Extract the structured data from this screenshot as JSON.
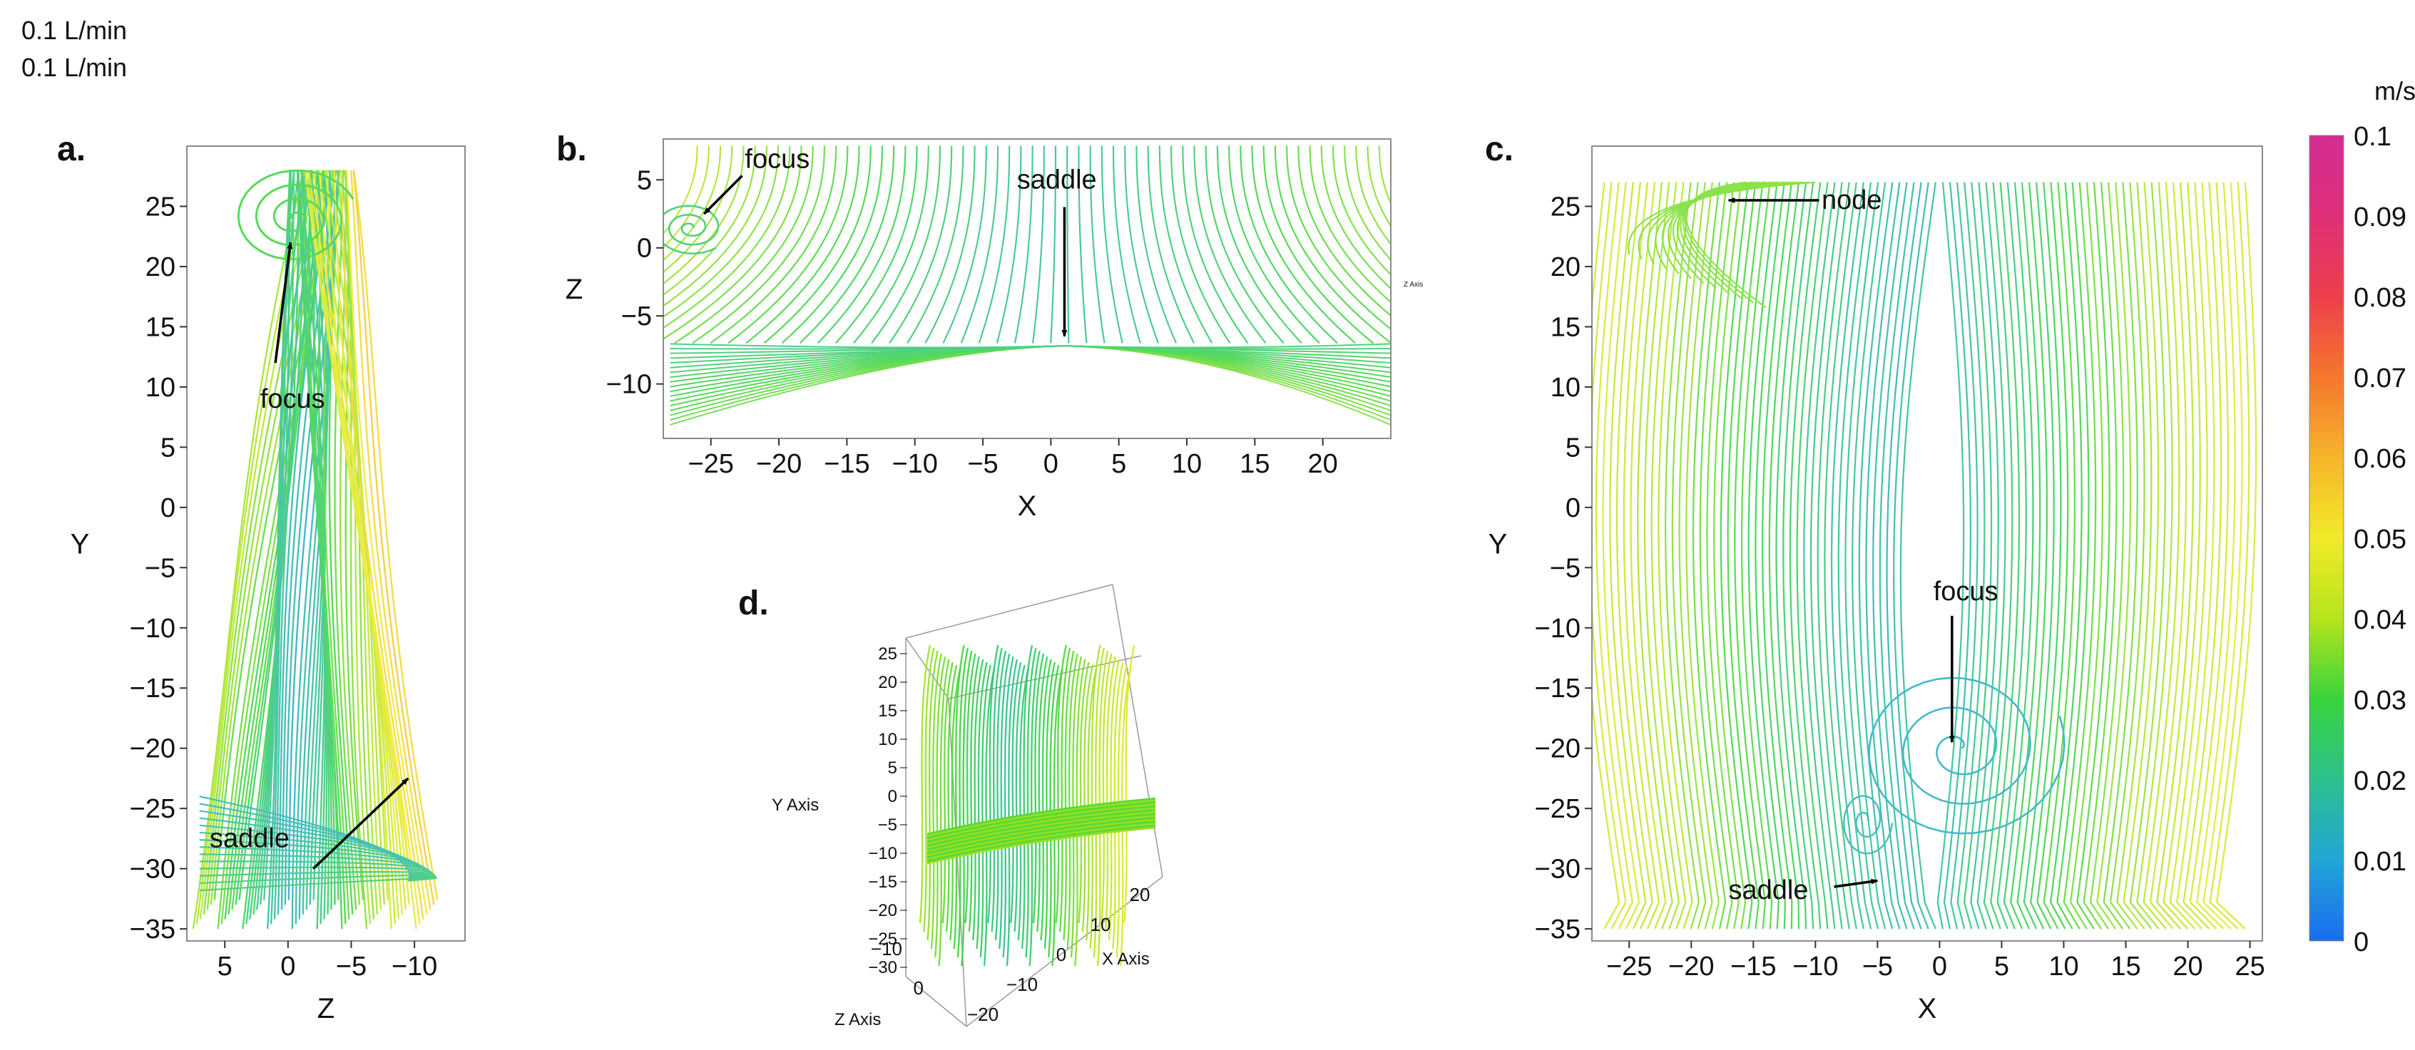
{
  "header": {
    "line1": "0.1 L/min",
    "line2": "0.1 L/min"
  },
  "chart_data": [
    {
      "id": "a",
      "panel_label": "a.",
      "type": "streamline",
      "xlabel": "Z",
      "ylabel": "Y",
      "xlim": [
        8,
        -14
      ],
      "ylim": [
        -36,
        30
      ],
      "xticks": [
        5,
        0,
        -5,
        -10
      ],
      "xtick_labels": [
        "5",
        "0",
        "−5",
        "−10"
      ],
      "yticks": [
        25,
        20,
        15,
        10,
        5,
        0,
        -5,
        -10,
        -15,
        -20,
        -25,
        -30,
        -35
      ],
      "ytick_labels": [
        "25",
        "20",
        "15",
        "10",
        "5",
        "0",
        "−5",
        "−10",
        "−15",
        "−20",
        "−25",
        "−30",
        "−35"
      ],
      "annotations": [
        {
          "text": "focus",
          "text_at": [
            2.2,
            9
          ],
          "arrow_from": [
            1.0,
            12
          ],
          "arrow_to": [
            -0.2,
            22
          ]
        },
        {
          "text": "saddle",
          "text_at": [
            6.2,
            -27.5
          ],
          "arrow_from": [
            -2,
            -30
          ],
          "arrow_to": [
            -9.5,
            -22.5
          ]
        }
      ],
      "critical_points": [
        {
          "kind": "focus",
          "at": [
            -0.5,
            22
          ]
        },
        {
          "kind": "saddle",
          "at": [
            -9.5,
            -22.5
          ]
        }
      ]
    },
    {
      "id": "b",
      "panel_label": "b.",
      "type": "streamline",
      "xlabel": "X",
      "ylabel": "Z",
      "xlim": [
        -28.5,
        25
      ],
      "ylim": [
        -14,
        8
      ],
      "xticks": [
        -25,
        -20,
        -15,
        -10,
        -5,
        0,
        5,
        10,
        15,
        20
      ],
      "xtick_labels": [
        "−25",
        "−20",
        "−15",
        "−10",
        "−5",
        "0",
        "5",
        "10",
        "15",
        "20"
      ],
      "yticks": [
        5,
        0,
        -5,
        -10
      ],
      "ytick_labels": [
        "5",
        "0",
        "−5",
        "−10"
      ],
      "side_label": "Z Axis",
      "annotations": [
        {
          "text": "focus",
          "text_at": [
            -22.5,
            6.5
          ],
          "arrow_from": [
            -22.7,
            5.3
          ],
          "arrow_to": [
            -25.5,
            2.5
          ]
        },
        {
          "text": "saddle",
          "text_at": [
            -2.5,
            5.0
          ],
          "arrow_from": [
            1.0,
            3.0
          ],
          "arrow_to": [
            1.0,
            -6.5
          ]
        }
      ],
      "critical_points": [
        {
          "kind": "focus",
          "at": [
            -26.5,
            1.5
          ]
        },
        {
          "kind": "saddle",
          "at": [
            1.0,
            -7.0
          ]
        }
      ]
    },
    {
      "id": "c",
      "panel_label": "c.",
      "type": "streamline",
      "xlabel": "X",
      "ylabel": "Y",
      "xlim": [
        -28,
        26
      ],
      "ylim": [
        -36,
        30
      ],
      "xticks": [
        -25,
        -20,
        -15,
        -10,
        -5,
        0,
        5,
        10,
        15,
        20,
        25
      ],
      "xtick_labels": [
        "−25",
        "−20",
        "−15",
        "−10",
        "−5",
        "0",
        "5",
        "10",
        "15",
        "20",
        "25"
      ],
      "yticks": [
        25,
        20,
        15,
        10,
        5,
        0,
        -5,
        -10,
        -15,
        -20,
        -25,
        -30,
        -35
      ],
      "ytick_labels": [
        "25",
        "20",
        "15",
        "10",
        "5",
        "0",
        "−5",
        "−10",
        "−15",
        "−20",
        "−25",
        "−30",
        "−35"
      ],
      "annotations": [
        {
          "text": "node",
          "text_at": [
            -9.5,
            25.5
          ],
          "arrow_from": [
            -9.7,
            25.5
          ],
          "arrow_to": [
            -17,
            25.5
          ]
        },
        {
          "text": "focus",
          "text_at": [
            -0.5,
            -7
          ],
          "arrow_from": [
            1,
            -9
          ],
          "arrow_to": [
            1,
            -19.5
          ]
        },
        {
          "text": "saddle",
          "text_at": [
            -17,
            -31.8
          ],
          "arrow_from": [
            -8.5,
            -31.5
          ],
          "arrow_to": [
            -5,
            -31
          ]
        }
      ],
      "critical_points": [
        {
          "kind": "node",
          "at": [
            -18,
            25.5
          ]
        },
        {
          "kind": "focus",
          "at": [
            1.5,
            -20
          ]
        },
        {
          "kind": "saddle",
          "at": [
            -5,
            -31
          ]
        }
      ]
    },
    {
      "id": "d",
      "panel_label": "d.",
      "type": "streamline-3d",
      "y_axis_label": "Y Axis",
      "x_axis_label": "X Axis",
      "z_axis_label": "Z Axis",
      "y_tick_labels": [
        "25",
        "20",
        "15",
        "10",
        "5",
        "0",
        "−5",
        "−10",
        "−15",
        "−20",
        "−25",
        "−30"
      ],
      "x_tick_labels": [
        "−20",
        "−10",
        "0",
        "10",
        "20"
      ],
      "z_tick_labels": [
        "−10",
        "0"
      ]
    }
  ],
  "colorbar": {
    "unit": "m/s",
    "min": 0,
    "max": 0.1,
    "ticks": [
      0.1,
      0.09,
      0.08,
      0.07,
      0.06,
      0.05,
      0.04,
      0.03,
      0.02,
      0.01,
      0
    ],
    "tick_labels": [
      "0.1",
      "0.09",
      "0.08",
      "0.07",
      "0.06",
      "0.05",
      "0.04",
      "0.03",
      "0.02",
      "0.01",
      "0"
    ],
    "colors": [
      "#1a6df0",
      "#21a5d6",
      "#2cc08e",
      "#39d43c",
      "#b5e51c",
      "#f2ea28",
      "#f6b52b",
      "#f4772d",
      "#ee3f4b",
      "#df2f78",
      "#d22e94"
    ]
  }
}
